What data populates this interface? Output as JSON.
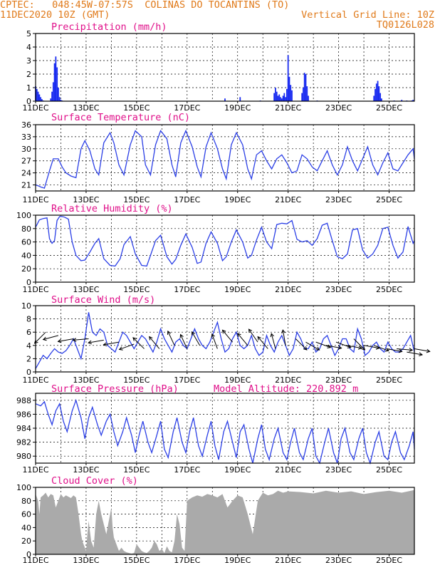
{
  "header": {
    "line1": "CPTEC:   048:45W-07:57S  COLINAS DO TOCANTINS (TO)",
    "line2_left": "11DEC2020 10Z (GMT)",
    "line2_right": "Vertical Grid Line: 10Z",
    "line3_right": "TQ0126L028"
  },
  "colors": {
    "header": "#e07a1a",
    "title": "#e0108a",
    "line": "#2b3fe6",
    "bar": "#1a2cf0",
    "cloud": "#aaaaaa"
  },
  "x_labels": [
    "11DEC",
    "13DEC",
    "15DEC",
    "17DEC",
    "19DEC",
    "21DEC",
    "23DEC",
    "25DEC"
  ],
  "chart_data": [
    {
      "type": "bar",
      "title": "Precipitation (mm/h)",
      "ylim": [
        0,
        5
      ],
      "yticks": [
        "0",
        "1",
        "2",
        "3",
        "4",
        "5"
      ],
      "x_start_day": 11,
      "x_end_day": 26,
      "values": [
        [
          11.0,
          1.1
        ],
        [
          11.05,
          0.9
        ],
        [
          11.1,
          0.7
        ],
        [
          11.15,
          0.5
        ],
        [
          11.2,
          0.3
        ],
        [
          11.25,
          0.15
        ],
        [
          11.3,
          0.05
        ],
        [
          11.6,
          0.2
        ],
        [
          11.65,
          0.7
        ],
        [
          11.7,
          1.4
        ],
        [
          11.75,
          2.8
        ],
        [
          11.8,
          3.3
        ],
        [
          11.85,
          2.5
        ],
        [
          11.9,
          1.0
        ],
        [
          11.95,
          0.3
        ],
        [
          12.0,
          0.1
        ],
        [
          12.05,
          0.05
        ],
        [
          18.5,
          0.2
        ],
        [
          19.1,
          0.3
        ],
        [
          19.9,
          0.05
        ],
        [
          20.45,
          0.6
        ],
        [
          20.5,
          1.0
        ],
        [
          20.55,
          0.7
        ],
        [
          20.6,
          0.4
        ],
        [
          20.65,
          0.5
        ],
        [
          20.7,
          0.3
        ],
        [
          20.75,
          0.2
        ],
        [
          20.8,
          0.4
        ],
        [
          20.85,
          0.6
        ],
        [
          20.9,
          0.3
        ],
        [
          20.95,
          0.9
        ],
        [
          21.0,
          3.4
        ],
        [
          21.05,
          1.8
        ],
        [
          21.1,
          1.2
        ],
        [
          21.15,
          0.8
        ],
        [
          21.55,
          0.6
        ],
        [
          21.6,
          1.0
        ],
        [
          21.65,
          2.1
        ],
        [
          21.7,
          2.0
        ],
        [
          21.75,
          1.1
        ],
        [
          21.8,
          0.4
        ],
        [
          22.15,
          0.05
        ],
        [
          24.4,
          0.4
        ],
        [
          24.45,
          0.9
        ],
        [
          24.5,
          1.3
        ],
        [
          24.55,
          1.5
        ],
        [
          24.6,
          1.1
        ],
        [
          24.65,
          0.6
        ],
        [
          24.7,
          0.2
        ],
        [
          25.2,
          0.05
        ],
        [
          25.5,
          0.1
        ],
        [
          25.7,
          0.05
        ],
        [
          25.9,
          0.05
        ],
        [
          25.95,
          0.1
        ]
      ]
    },
    {
      "type": "line",
      "title": "Surface Temperature (nC)",
      "ylim": [
        19.5,
        36
      ],
      "yticks": [
        "21",
        "24",
        "27",
        "30",
        "33",
        "36"
      ],
      "x": [
        11.0,
        11.1,
        11.2,
        11.35,
        11.55,
        11.7,
        11.9,
        12.05,
        12.2,
        12.4,
        12.6,
        12.8,
        12.95,
        13.15,
        13.35,
        13.5,
        13.7,
        13.95,
        14.1,
        14.3,
        14.5,
        14.75,
        14.95,
        15.2,
        15.35,
        15.55,
        15.75,
        15.95,
        16.2,
        16.4,
        16.55,
        16.75,
        16.95,
        17.2,
        17.4,
        17.55,
        17.75,
        17.95,
        18.2,
        18.4,
        18.55,
        18.75,
        18.95,
        19.2,
        19.4,
        19.55,
        19.75,
        19.95,
        20.15,
        20.35,
        20.55,
        20.75,
        20.95,
        21.15,
        21.35,
        21.55,
        21.75,
        21.95,
        22.15,
        22.35,
        22.55,
        22.75,
        22.95,
        23.15,
        23.35,
        23.55,
        23.75,
        23.95,
        24.15,
        24.35,
        24.55,
        24.75,
        24.95,
        25.15,
        25.35,
        25.55,
        25.75,
        25.95,
        26.0
      ],
      "y": [
        21.0,
        20.8,
        20.5,
        20.2,
        24.5,
        27.5,
        27.5,
        25.5,
        24.0,
        23.2,
        22.8,
        30.0,
        32.0,
        29.5,
        25.0,
        23.5,
        31.5,
        34.0,
        31.5,
        26.0,
        23.5,
        31.0,
        34.5,
        33.0,
        26.0,
        23.5,
        31.0,
        34.5,
        32.5,
        26.0,
        23.0,
        31.5,
        34.5,
        30.5,
        25.5,
        23.0,
        30.5,
        34.0,
        30.0,
        25.0,
        22.5,
        31.0,
        34.0,
        31.0,
        25.0,
        22.5,
        28.5,
        29.5,
        27.0,
        25.0,
        27.5,
        28.5,
        26.5,
        24.0,
        24.5,
        28.5,
        27.5,
        25.5,
        24.5,
        27.0,
        29.5,
        26.0,
        23.5,
        26.0,
        30.5,
        27.0,
        24.5,
        27.5,
        30.5,
        26.0,
        23.5,
        26.5,
        29.0,
        25.0,
        24.5,
        26.5,
        28.5,
        30.0,
        27.5
      ]
    },
    {
      "type": "line",
      "title": "Relative Humidity (%)",
      "ylim": [
        0,
        100
      ],
      "yticks": [
        "0",
        "20",
        "40",
        "60",
        "80",
        "100"
      ],
      "x": [
        11.0,
        11.15,
        11.3,
        11.45,
        11.55,
        11.65,
        11.75,
        11.85,
        11.95,
        12.05,
        12.15,
        12.3,
        12.45,
        12.6,
        12.8,
        12.95,
        13.15,
        13.35,
        13.5,
        13.7,
        13.95,
        14.15,
        14.35,
        14.5,
        14.75,
        14.95,
        15.2,
        15.4,
        15.55,
        15.75,
        15.95,
        16.2,
        16.4,
        16.55,
        16.75,
        16.95,
        17.2,
        17.4,
        17.55,
        17.75,
        17.95,
        18.2,
        18.4,
        18.55,
        18.75,
        18.95,
        19.2,
        19.4,
        19.55,
        19.75,
        19.95,
        20.15,
        20.35,
        20.55,
        20.75,
        20.95,
        21.15,
        21.35,
        21.55,
        21.75,
        21.95,
        22.15,
        22.35,
        22.55,
        22.75,
        22.95,
        23.15,
        23.35,
        23.55,
        23.75,
        23.95,
        24.15,
        24.35,
        24.55,
        24.75,
        24.95,
        25.15,
        25.35,
        25.55,
        25.75,
        25.95,
        26.0
      ],
      "y": [
        82,
        93,
        95,
        96,
        65,
        58,
        62,
        92,
        98,
        98,
        97,
        94,
        60,
        40,
        32,
        33,
        45,
        58,
        65,
        35,
        25,
        24,
        35,
        56,
        68,
        42,
        25,
        24,
        40,
        62,
        70,
        38,
        27,
        34,
        55,
        72,
        52,
        28,
        30,
        58,
        75,
        58,
        32,
        38,
        60,
        78,
        60,
        36,
        40,
        63,
        82,
        60,
        50,
        86,
        88,
        87,
        92,
        64,
        60,
        62,
        55,
        65,
        85,
        88,
        62,
        38,
        35,
        42,
        78,
        80,
        48,
        36,
        42,
        55,
        80,
        82,
        55,
        36,
        45,
        83,
        58,
        62
      ]
    },
    {
      "type": "line",
      "title": "Surface Wind (m/s)",
      "ylim": [
        0,
        10
      ],
      "yticks": [
        "0",
        "2",
        "4",
        "6",
        "8",
        "10"
      ],
      "x": [
        11.0,
        11.15,
        11.3,
        11.45,
        11.6,
        11.75,
        11.9,
        12.05,
        12.2,
        12.35,
        12.5,
        12.65,
        12.8,
        12.95,
        13.1,
        13.25,
        13.4,
        13.55,
        13.7,
        13.85,
        14.0,
        14.15,
        14.3,
        14.45,
        14.6,
        14.75,
        14.9,
        15.05,
        15.2,
        15.35,
        15.5,
        15.65,
        15.8,
        15.95,
        16.1,
        16.25,
        16.4,
        16.55,
        16.7,
        16.85,
        17.0,
        17.15,
        17.3,
        17.45,
        17.6,
        17.75,
        17.9,
        18.05,
        18.2,
        18.35,
        18.5,
        18.65,
        18.8,
        18.95,
        19.1,
        19.25,
        19.4,
        19.55,
        19.7,
        19.85,
        20.0,
        20.15,
        20.3,
        20.45,
        20.6,
        20.75,
        20.9,
        21.05,
        21.2,
        21.35,
        21.5,
        21.65,
        21.8,
        21.95,
        22.1,
        22.25,
        22.4,
        22.55,
        22.7,
        22.85,
        23.0,
        23.15,
        23.3,
        23.45,
        23.6,
        23.75,
        23.9,
        24.05,
        24.2,
        24.35,
        24.5,
        24.65,
        24.8,
        24.95,
        25.1,
        25.25,
        25.4,
        25.55,
        25.7,
        25.85,
        26.0
      ],
      "y": [
        0.5,
        1.5,
        2.5,
        2.0,
        2.8,
        3.5,
        3.0,
        2.8,
        3.2,
        4.0,
        5.0,
        3.5,
        2.0,
        5.0,
        9.0,
        6.0,
        5.5,
        6.5,
        6.0,
        4.0,
        3.5,
        3.0,
        4.5,
        6.0,
        5.5,
        4.5,
        3.5,
        4.5,
        5.5,
        5.0,
        4.0,
        3.0,
        4.5,
        6.5,
        5.0,
        4.0,
        3.0,
        4.5,
        5.0,
        4.0,
        3.5,
        5.0,
        6.5,
        5.0,
        4.0,
        3.5,
        4.5,
        6.0,
        7.5,
        5.0,
        3.0,
        3.5,
        5.0,
        6.0,
        4.0,
        3.5,
        4.0,
        5.5,
        3.5,
        2.5,
        3.0,
        5.5,
        4.0,
        3.0,
        4.5,
        5.5,
        4.0,
        2.5,
        3.5,
        6.0,
        5.0,
        3.5,
        3.5,
        4.5,
        3.0,
        3.5,
        5.0,
        5.5,
        4.0,
        2.5,
        3.5,
        5.0,
        5.0,
        3.5,
        3.0,
        6.5,
        5.0,
        2.5,
        3.0,
        4.0,
        4.5,
        3.5,
        3.0,
        4.5,
        3.5,
        3.0,
        3.0,
        3.5,
        4.5,
        5.5,
        3.0
      ],
      "arrows": [
        [
          11.4,
          6.0,
          -135
        ],
        [
          11.9,
          5.5,
          -165
        ],
        [
          12.5,
          5.0,
          -170
        ],
        [
          13.1,
          5.0,
          -175
        ],
        [
          13.7,
          4.8,
          -170
        ],
        [
          14.3,
          4.5,
          -170
        ],
        [
          14.9,
          4.2,
          -160
        ],
        [
          15.3,
          3.5,
          135
        ],
        [
          15.9,
          3.5,
          130
        ],
        [
          16.5,
          4.0,
          115
        ],
        [
          17.0,
          3.5,
          115
        ],
        [
          17.5,
          4.0,
          120
        ],
        [
          18.2,
          3.5,
          110
        ],
        [
          18.8,
          4.5,
          130
        ],
        [
          19.4,
          4.0,
          130
        ],
        [
          19.8,
          4.5,
          125
        ],
        [
          20.2,
          3.5,
          130
        ],
        [
          20.5,
          3.5,
          105
        ],
        [
          20.9,
          4.0,
          100
        ],
        [
          21.3,
          5.0,
          -45
        ],
        [
          21.7,
          4.5,
          -30
        ],
        [
          22.1,
          4.5,
          -20
        ],
        [
          22.5,
          4.0,
          -10
        ],
        [
          22.9,
          4.5,
          -20
        ],
        [
          23.3,
          4.0,
          -10
        ],
        [
          23.6,
          5.0,
          -45
        ],
        [
          24.0,
          4.0,
          -10
        ],
        [
          24.4,
          4.0,
          -20
        ],
        [
          24.9,
          3.5,
          -10
        ],
        [
          25.3,
          3.5,
          -5
        ],
        [
          25.7,
          3.0,
          -10
        ],
        [
          26.0,
          3.5,
          -10
        ]
      ]
    },
    {
      "type": "line",
      "title": "Surface Pressure (hPa)",
      "annotation": "Model Altitude: 220.892 m",
      "ylim": [
        979,
        989
      ],
      "yticks": [
        "980",
        "982",
        "984",
        "986",
        "988"
      ],
      "x": [
        11.0,
        11.2,
        11.35,
        11.5,
        11.65,
        11.8,
        11.95,
        12.1,
        12.25,
        12.45,
        12.6,
        12.8,
        12.95,
        13.1,
        13.25,
        13.45,
        13.6,
        13.8,
        13.95,
        14.1,
        14.25,
        14.45,
        14.6,
        14.8,
        14.95,
        15.1,
        15.25,
        15.45,
        15.6,
        15.8,
        15.95,
        16.1,
        16.25,
        16.45,
        16.6,
        16.8,
        16.95,
        17.1,
        17.25,
        17.45,
        17.6,
        17.8,
        17.95,
        18.1,
        18.25,
        18.45,
        18.6,
        18.8,
        18.95,
        19.1,
        19.25,
        19.45,
        19.6,
        19.8,
        19.95,
        20.1,
        20.25,
        20.45,
        20.6,
        20.8,
        20.95,
        21.1,
        21.25,
        21.45,
        21.6,
        21.8,
        21.95,
        22.1,
        22.25,
        22.45,
        22.6,
        22.8,
        22.95,
        23.1,
        23.25,
        23.45,
        23.6,
        23.8,
        23.95,
        24.1,
        24.25,
        24.45,
        24.6,
        24.8,
        24.95,
        25.1,
        25.25,
        25.45,
        25.6,
        25.8,
        25.95,
        26.0
      ],
      "y": [
        987.5,
        987.2,
        987.8,
        986.0,
        984.5,
        986.5,
        987.5,
        985.0,
        983.5,
        986.5,
        988.0,
        985.5,
        982.5,
        985.5,
        987.0,
        984.5,
        983.0,
        985.0,
        986.0,
        983.5,
        981.5,
        983.5,
        985.5,
        983.0,
        980.5,
        983.0,
        985.0,
        982.0,
        980.5,
        983.0,
        985.0,
        981.0,
        979.8,
        983.5,
        985.5,
        982.0,
        980.5,
        983.5,
        985.5,
        981.5,
        980.0,
        983.0,
        985.0,
        981.5,
        979.5,
        983.5,
        985.0,
        982.0,
        979.8,
        983.5,
        984.5,
        981.0,
        979.0,
        982.5,
        984.5,
        981.0,
        979.5,
        982.5,
        984.0,
        980.5,
        979.5,
        982.0,
        984.0,
        980.5,
        979.5,
        982.5,
        984.0,
        980.0,
        979.0,
        982.0,
        984.0,
        980.5,
        979.0,
        982.5,
        984.0,
        980.5,
        979.5,
        982.5,
        984.0,
        980.5,
        979.0,
        982.0,
        983.5,
        980.0,
        979.5,
        982.0,
        983.5,
        980.5,
        979.5,
        981.5,
        983.5,
        981.0
      ]
    },
    {
      "type": "area",
      "title": "Cloud Cover (%)",
      "ylim": [
        0,
        100
      ],
      "yticks": [
        "0",
        "20",
        "40",
        "60",
        "80",
        "100"
      ],
      "x": [
        11.0,
        11.1,
        11.15,
        11.2,
        11.3,
        11.4,
        11.5,
        11.6,
        11.7,
        11.8,
        11.9,
        12.0,
        12.1,
        12.2,
        12.3,
        12.4,
        12.5,
        12.6,
        12.7,
        12.8,
        12.85,
        12.9,
        13.0,
        13.05,
        13.1,
        13.2,
        13.3,
        13.4,
        13.5,
        13.6,
        13.7,
        13.8,
        13.9,
        14.0,
        14.05,
        14.1,
        14.2,
        14.3,
        14.4,
        14.5,
        14.6,
        14.7,
        14.8,
        14.9,
        15.0,
        15.1,
        15.2,
        15.3,
        15.4,
        15.5,
        15.6,
        15.7,
        15.8,
        15.9,
        16.0,
        16.1,
        16.2,
        16.3,
        16.4,
        16.5,
        16.6,
        16.7,
        16.8,
        16.9,
        17.0,
        17.2,
        17.4,
        17.6,
        17.8,
        18.0,
        18.2,
        18.4,
        18.6,
        18.8,
        19.0,
        19.2,
        19.4,
        19.6,
        19.8,
        20.0,
        20.2,
        20.4,
        20.6,
        20.8,
        21.0,
        21.5,
        22.0,
        22.5,
        23.0,
        23.5,
        24.0,
        24.5,
        25.0,
        25.5,
        26.0
      ],
      "y": [
        90,
        80,
        60,
        85,
        88,
        92,
        85,
        90,
        88,
        70,
        80,
        90,
        85,
        88,
        86,
        84,
        88,
        85,
        60,
        30,
        20,
        15,
        5,
        30,
        50,
        20,
        10,
        60,
        80,
        60,
        45,
        30,
        50,
        70,
        40,
        25,
        15,
        5,
        10,
        5,
        3,
        2,
        1,
        2,
        15,
        10,
        5,
        3,
        2,
        5,
        10,
        20,
        15,
        5,
        8,
        2,
        12,
        5,
        3,
        20,
        60,
        45,
        10,
        5,
        80,
        85,
        88,
        86,
        90,
        88,
        85,
        90,
        70,
        80,
        88,
        85,
        60,
        30,
        80,
        92,
        88,
        90,
        95,
        92,
        94,
        93,
        91,
        95,
        92,
        94,
        90,
        93,
        95,
        92,
        96
      ]
    }
  ]
}
